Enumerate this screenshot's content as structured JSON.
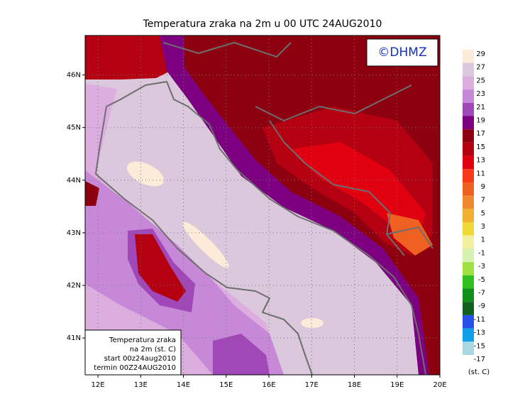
{
  "title": "Temperatura zraka na 2m u 00 UTC 24AUG2010",
  "logo": "©DHMZ",
  "map": {
    "lonlim": [
      11.7,
      20
    ],
    "latlim": [
      40.3,
      46.75
    ],
    "lon_ticks": [
      {
        "value": 12,
        "label": "12E"
      },
      {
        "value": 13,
        "label": "13E"
      },
      {
        "value": 14,
        "label": "14E"
      },
      {
        "value": 15,
        "label": "15E"
      },
      {
        "value": 16,
        "label": "16E"
      },
      {
        "value": 17,
        "label": "17E"
      },
      {
        "value": 18,
        "label": "18E"
      },
      {
        "value": 19,
        "label": "19E"
      },
      {
        "value": 20,
        "label": "20E"
      }
    ],
    "lat_ticks": [
      {
        "value": 41,
        "label": "41N"
      },
      {
        "value": 42,
        "label": "42N"
      },
      {
        "value": 43,
        "label": "43N"
      },
      {
        "value": 44,
        "label": "44N"
      },
      {
        "value": 45,
        "label": "45N"
      },
      {
        "value": 46,
        "label": "46N"
      }
    ],
    "grid": true
  },
  "colorbar": {
    "labels": [
      29,
      27,
      25,
      23,
      21,
      19,
      17,
      15,
      13,
      11,
      9,
      7,
      5,
      3,
      1,
      -1,
      -3,
      -5,
      -7,
      -9,
      -11,
      -13,
      -15,
      -17
    ],
    "colors": [
      "#fcebd8",
      "#dcc8dc",
      "#dcaee0",
      "#c888d8",
      "#a048b8",
      "#7c0080",
      "#8c0010",
      "#b40010",
      "#e00010",
      "#f83818",
      "#f06020",
      "#f08830",
      "#f0b030",
      "#f0d838",
      "#f0f0a0",
      "#d8f0b0",
      "#a0e040",
      "#30c020",
      "#109018",
      "#106020",
      "#2850e8",
      "#10a0e8",
      "#a8d8e0"
    ],
    "unit": "(st. C)"
  },
  "info_box": [
    "Temperatura zraka",
    "na 2m (st. C)",
    "start 00z24aug2010",
    "termin 00Z24AUG2010"
  ]
}
